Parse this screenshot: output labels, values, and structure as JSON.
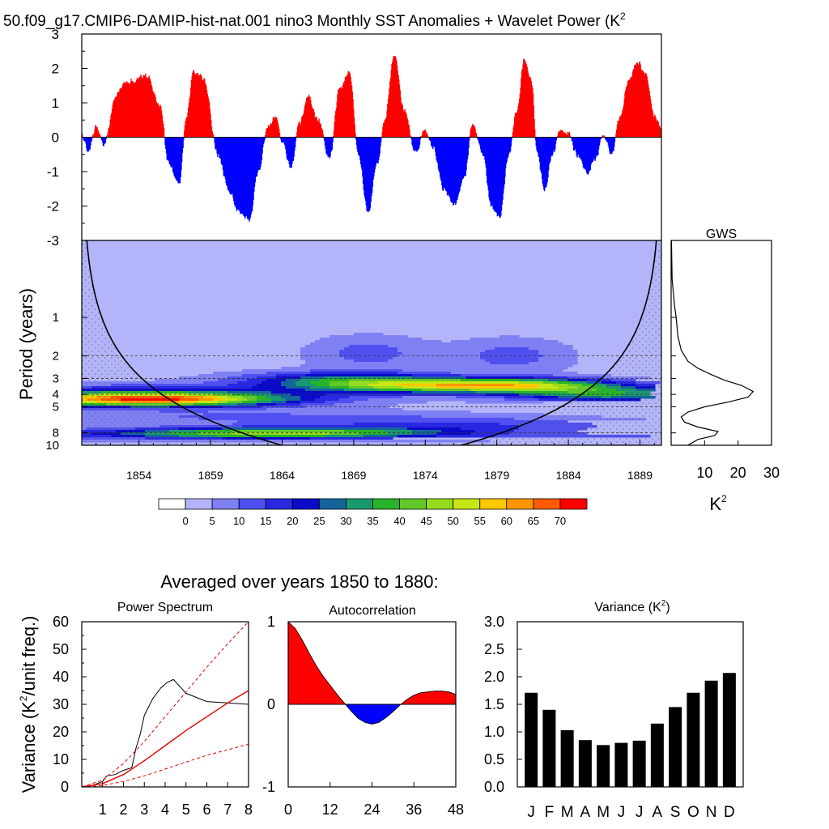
{
  "title": "50.f09_g17.CMIP6-DAMIP-hist-nat.001 nino3 Monthly SST Anomalies + Wavelet Power (K",
  "title_sup": "2",
  "colors": {
    "positive": "#ff0000",
    "negative": "#0000ff",
    "bar": "#000000",
    "coi_shade": "#b4b4fa",
    "red_line": "#ee0000"
  },
  "chart_data": [
    {
      "id": "sst",
      "type": "area",
      "xlim": [
        1850,
        1890.5
      ],
      "ylim": [
        -3,
        3
      ],
      "yticks": [
        -3,
        -2,
        -1,
        0,
        1,
        2,
        3
      ],
      "ytick_labels": [
        "-3",
        "-2",
        "-1",
        "0",
        "1",
        "2",
        "3"
      ],
      "x": [
        1850.0,
        1850.4,
        1851.0,
        1851.5,
        1852.5,
        1853.0,
        1853.5,
        1854.5,
        1855.5,
        1856.0,
        1856.8,
        1857.3,
        1857.8,
        1858.5,
        1859.5,
        1860.3,
        1861.0,
        1861.7,
        1862.3,
        1863.0,
        1863.5,
        1864.0,
        1864.6,
        1865.2,
        1865.8,
        1866.5,
        1867.3,
        1868.0,
        1868.7,
        1869.3,
        1870.0,
        1870.6,
        1871.2,
        1871.8,
        1872.5,
        1873.3,
        1874.0,
        1874.5,
        1875.3,
        1876.0,
        1876.7,
        1877.3,
        1878.0,
        1878.6,
        1879.2,
        1879.8,
        1880.4,
        1880.9,
        1881.4,
        1881.8,
        1882.3,
        1882.9,
        1883.4,
        1884.0,
        1884.6,
        1885.3,
        1885.9,
        1886.4,
        1887.0,
        1887.6,
        1888.2,
        1888.8,
        1889.4,
        1890.0,
        1890.5
      ],
      "y": [
        0.1,
        -0.4,
        0.3,
        -0.2,
        1.3,
        1.6,
        1.6,
        1.8,
        0.9,
        -0.7,
        -1.3,
        0.6,
        1.9,
        1.7,
        -0.5,
        -1.6,
        -2.2,
        -2.4,
        -1.0,
        0.3,
        0.6,
        -0.1,
        -0.9,
        0.4,
        1.2,
        0.5,
        -0.6,
        1.4,
        1.9,
        -0.5,
        -2.2,
        -0.8,
        0.6,
        2.4,
        0.8,
        -0.4,
        0.2,
        -0.3,
        -1.5,
        -2.0,
        -1.2,
        0.4,
        -0.5,
        -2.0,
        -2.3,
        -0.5,
        0.8,
        2.3,
        1.6,
        -0.4,
        -1.5,
        -0.5,
        0.2,
        0.1,
        -0.5,
        -1.0,
        -0.6,
        0.1,
        -0.5,
        0.6,
        1.6,
        2.2,
        1.8,
        0.6,
        0.3
      ]
    },
    {
      "id": "wavelet",
      "type": "heatmap",
      "xlim": [
        1850,
        1890.5
      ],
      "xticks": [
        1854,
        1859,
        1864,
        1869,
        1874,
        1879,
        1884,
        1889
      ],
      "ylabel": "Period (years)",
      "yticks": [
        1,
        2,
        3,
        4,
        5,
        8,
        10
      ],
      "ylim": [
        0.25,
        10
      ],
      "levels": [
        0,
        5,
        10,
        15,
        20,
        25,
        30,
        35,
        40,
        45,
        50,
        55,
        60,
        65,
        70
      ],
      "colors": [
        "#ffffff",
        "#b4b4fa",
        "#8080f5",
        "#5050f0",
        "#2828e0",
        "#0a0ac8",
        "#14649a",
        "#1a9870",
        "#28b428",
        "#60c828",
        "#96dc1e",
        "#c8e614",
        "#ffc800",
        "#ff9600",
        "#ff5a00",
        "#ff0000"
      ],
      "power_blobs": [
        {
          "time": 1855,
          "period": 4.4,
          "amp": 50,
          "wt": 6,
          "wp": 0.12
        },
        {
          "time": 1853,
          "period": 4.1,
          "amp": 25,
          "wt": 10,
          "wp": 0.18
        },
        {
          "time": 1865,
          "period": 8.0,
          "amp": 35,
          "wt": 8,
          "wp": 0.1
        },
        {
          "time": 1857,
          "period": 8.2,
          "amp": 14,
          "wt": 9,
          "wp": 0.1
        },
        {
          "time": 1862,
          "period": 6.0,
          "amp": 8,
          "wt": 12,
          "wp": 0.14
        },
        {
          "time": 1873,
          "period": 3.4,
          "amp": 38,
          "wt": 6,
          "wp": 0.13
        },
        {
          "time": 1881,
          "period": 3.4,
          "amp": 36,
          "wt": 5,
          "wp": 0.13
        },
        {
          "time": 1887,
          "period": 4.0,
          "amp": 30,
          "wt": 5,
          "wp": 0.14
        },
        {
          "time": 1868,
          "period": 3.0,
          "amp": 20,
          "wt": 5,
          "wp": 0.14
        },
        {
          "time": 1877,
          "period": 7.0,
          "amp": 12,
          "wt": 9,
          "wp": 0.14
        },
        {
          "time": 1870,
          "period": 1.9,
          "amp": 10,
          "wt": 3,
          "wp": 0.32
        },
        {
          "time": 1880,
          "period": 2.0,
          "amp": 10,
          "wt": 3,
          "wp": 0.32
        },
        {
          "time": 1886,
          "period": 9.0,
          "amp": 12,
          "wt": 7,
          "wp": 0.1
        }
      ],
      "dashed_periods": [
        2,
        3,
        4,
        5,
        8
      ],
      "coi_factor": 1.4
    },
    {
      "id": "gws",
      "type": "line",
      "title": "GWS",
      "xlim": [
        0,
        30
      ],
      "xticks": [
        10,
        20,
        30
      ],
      "xlabel": "K",
      "xlabel_sup": "2",
      "period": [
        0.25,
        0.5,
        0.8,
        1.0,
        1.4,
        1.8,
        2.2,
        2.5,
        2.8,
        3.1,
        3.4,
        3.8,
        4.2,
        4.6,
        5.0,
        5.5,
        6.0,
        6.6,
        7.2,
        7.8,
        8.4,
        9.0,
        10.0
      ],
      "power": [
        0.1,
        0.3,
        1.0,
        1.5,
        2.0,
        3.0,
        5.0,
        8.0,
        12.0,
        16.0,
        21.0,
        24.5,
        23.0,
        17.0,
        10.0,
        5.0,
        3.0,
        4.0,
        8.0,
        14.0,
        13.0,
        8.0,
        5.0
      ]
    },
    {
      "id": "power_spectrum",
      "type": "line",
      "title": "Power Spectrum",
      "ylabel": "Variance (K",
      "ylabel_sup": "2",
      "ylabel_tail": "/unit freq.)",
      "xlim": [
        0,
        8
      ],
      "ylim": [
        0,
        60
      ],
      "xticks": [
        1,
        2,
        3,
        4,
        5,
        6,
        7,
        8
      ],
      "yticks": [
        0,
        10,
        20,
        30,
        40,
        50,
        60
      ],
      "series": [
        {
          "style": "black",
          "x": [
            0,
            0.5,
            1.0,
            1.2,
            1.6,
            2.0,
            2.4,
            2.6,
            2.8,
            3.0,
            3.4,
            3.8,
            4.1,
            4.4,
            5.0,
            6.0,
            7.0,
            8.0
          ],
          "y": [
            0,
            0.5,
            2,
            4,
            4.5,
            6,
            7,
            14,
            19,
            26,
            32,
            36,
            38,
            39,
            34,
            31,
            30.5,
            30
          ]
        },
        {
          "style": "red",
          "x": [
            0,
            1,
            2,
            3,
            4,
            5,
            6,
            7,
            8
          ],
          "y": [
            0,
            1.2,
            4.5,
            9.5,
            15,
            20.5,
            25.5,
            30.5,
            35
          ]
        },
        {
          "style": "red-dash",
          "x": [
            0,
            1,
            2,
            3,
            4,
            5,
            6,
            7,
            8
          ],
          "y": [
            0,
            2.5,
            8.5,
            16.5,
            25.5,
            34.5,
            43.5,
            52,
            60
          ]
        },
        {
          "style": "red-dash",
          "x": [
            0,
            1,
            2,
            3,
            4,
            5,
            6,
            7,
            8
          ],
          "y": [
            0,
            0.5,
            2.0,
            4.0,
            6.5,
            9.0,
            11.5,
            13.5,
            15.5
          ]
        }
      ]
    },
    {
      "id": "autocorrelation",
      "type": "area",
      "title": "Autocorrelation",
      "xlim": [
        0,
        48
      ],
      "ylim": [
        -1,
        1
      ],
      "xticks": [
        0,
        12,
        24,
        36,
        48
      ],
      "yticks": [
        -1,
        0,
        1
      ],
      "x": [
        0,
        2,
        4,
        6,
        8,
        10,
        12,
        14,
        16,
        18,
        20,
        22,
        24,
        26,
        28,
        30,
        32,
        34,
        36,
        38,
        40,
        42,
        44,
        46,
        48
      ],
      "y": [
        1.0,
        0.92,
        0.78,
        0.62,
        0.47,
        0.34,
        0.23,
        0.12,
        0.02,
        -0.08,
        -0.17,
        -0.22,
        -0.24,
        -0.22,
        -0.16,
        -0.09,
        -0.01,
        0.06,
        0.11,
        0.14,
        0.15,
        0.16,
        0.16,
        0.15,
        0.12
      ]
    },
    {
      "id": "variance",
      "type": "bar",
      "title": "Variance (K",
      "title_sup": "2",
      "title_tail": ")",
      "categories": [
        "J",
        "F",
        "M",
        "A",
        "M",
        "J",
        "J",
        "A",
        "S",
        "O",
        "N",
        "D"
      ],
      "values": [
        1.71,
        1.4,
        1.03,
        0.85,
        0.76,
        0.8,
        0.84,
        1.15,
        1.45,
        1.71,
        1.93,
        2.07
      ],
      "ylim": [
        0,
        3
      ],
      "yticks": [
        0.0,
        0.5,
        1.0,
        1.5,
        2.0,
        2.5,
        3.0
      ],
      "ytick_labels": [
        "0.0",
        "0.5",
        "1.0",
        "1.5",
        "2.0",
        "2.5",
        "3.0"
      ]
    }
  ],
  "colorbar": {
    "labels": [
      "0",
      "5",
      "10",
      "15",
      "20",
      "25",
      "30",
      "35",
      "40",
      "45",
      "50",
      "55",
      "60",
      "65",
      "70"
    ]
  },
  "subtitle": "Averaged over years 1850 to 1880:"
}
